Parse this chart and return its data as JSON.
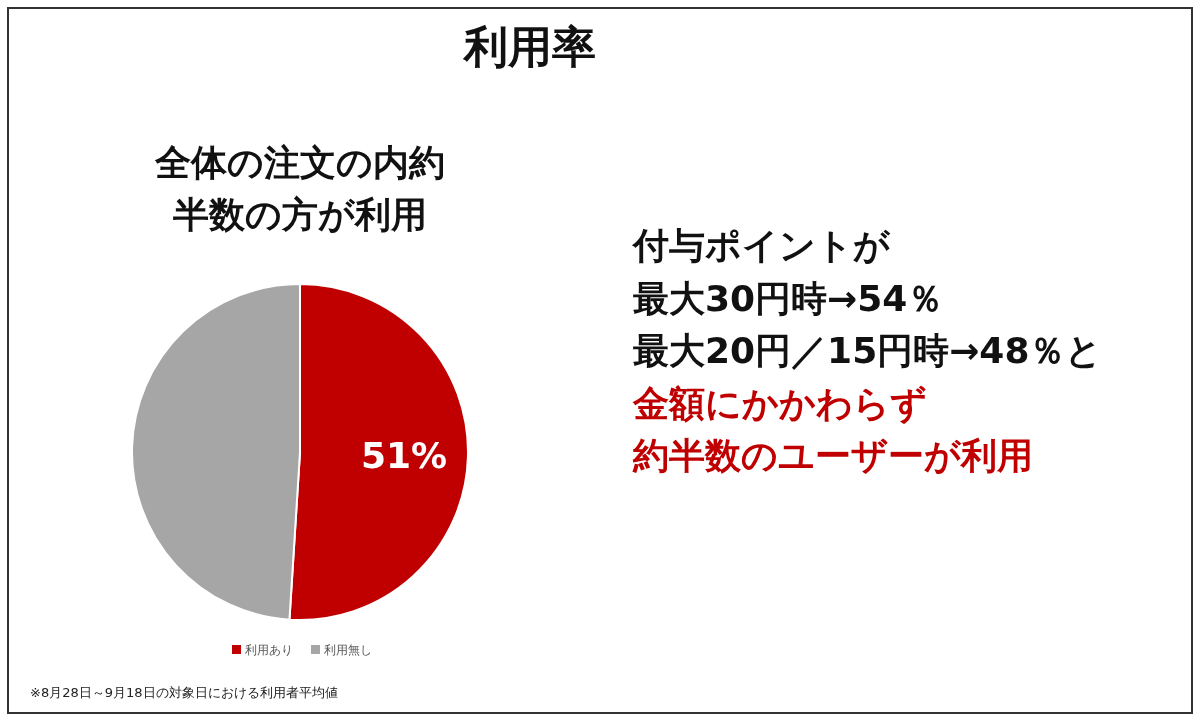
{
  "chart_data": {
    "type": "pie",
    "title": "利用率",
    "subtitle": "全体の注文の内約半数の方が利用",
    "categories": [
      "利用あり",
      "利用無し"
    ],
    "values": [
      51,
      49
    ],
    "colors": [
      "#c00000",
      "#a6a6a6"
    ],
    "value_labels": [
      "51%",
      null
    ],
    "legend": "bottom",
    "annotations": [
      "付与ポイントが",
      "最大30円時→54％",
      "最大20円／15円時→48％と",
      "金額にかかわらず",
      "約半数のユーザーが利用",
      "※8月28日～9月18日の対象日における利用者平均値"
    ]
  }
}
